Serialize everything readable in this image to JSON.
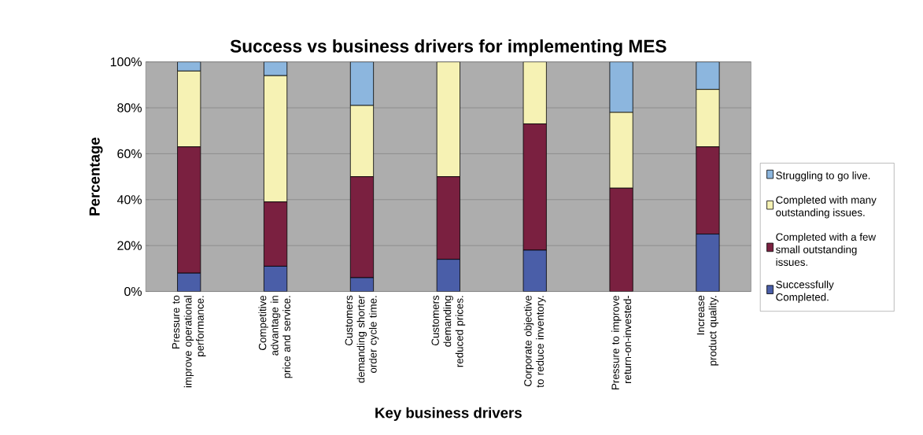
{
  "chart_data": {
    "type": "bar",
    "stacked": true,
    "title": "Success vs business drivers for implementing MES",
    "xlabel": "Key business drivers",
    "ylabel": "Percentage",
    "categories": [
      "Pressure to improve operational performance.",
      "Competitive advantage in price and service.",
      "Customers demanding shorter order cycle time.",
      "Customers demanding reduced prices.",
      "Corporate objective to reduce inventory.",
      "Pressure to improve return-on-invested-",
      "Increase product quality."
    ],
    "series": [
      {
        "name": "Successfully Completed.",
        "color": "#4a5ea8",
        "values": [
          8,
          11,
          6,
          14,
          18,
          0,
          25
        ]
      },
      {
        "name": "Completed with a few small outstanding issues.",
        "color": "#7a2040",
        "values": [
          55,
          28,
          44,
          36,
          55,
          45,
          38
        ]
      },
      {
        "name": "Completed with many outstanding issues.",
        "color": "#f6f2b4",
        "values": [
          33,
          55,
          31,
          50,
          27,
          33,
          25
        ]
      },
      {
        "name": "Struggling to go live.",
        "color": "#8cb6de",
        "values": [
          4,
          6,
          19,
          0,
          0,
          22,
          12
        ]
      }
    ],
    "ylim": [
      0,
      100
    ],
    "yticks": [
      {
        "value": 0,
        "label": "0%"
      },
      {
        "value": 20,
        "label": "20%"
      },
      {
        "value": 40,
        "label": "40%"
      },
      {
        "value": 60,
        "label": "60%"
      },
      {
        "value": 80,
        "label": "80%"
      },
      {
        "value": 100,
        "label": "100%"
      }
    ],
    "grid": "y",
    "legend": "right"
  }
}
